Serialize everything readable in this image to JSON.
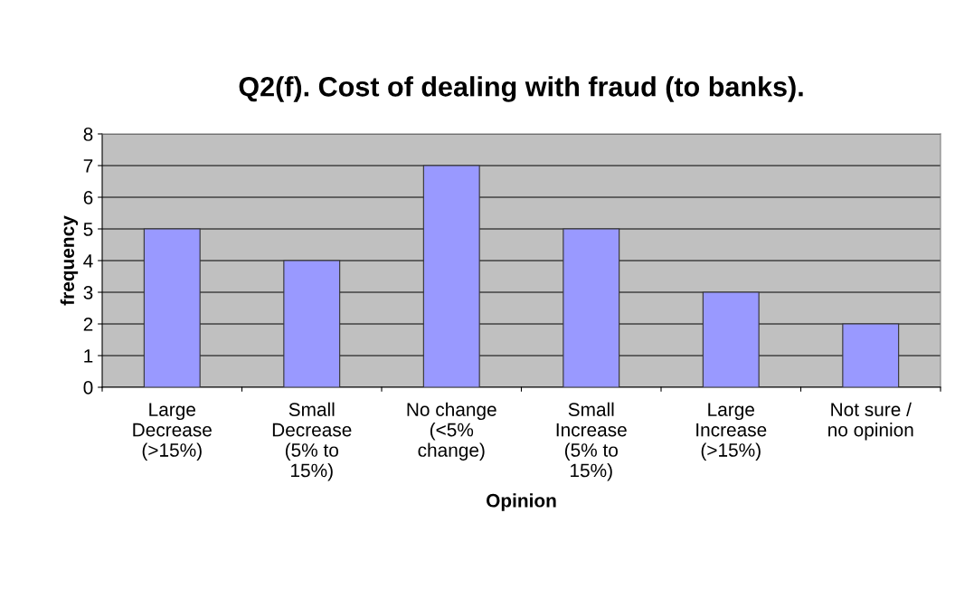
{
  "chart_data": {
    "type": "bar",
    "title": "Q2(f). Cost of dealing with fraud (to banks).",
    "xlabel": "Opinion",
    "ylabel": "frequency",
    "categories": [
      "Large\nDecrease\n(>15%)",
      "Small\nDecrease\n(5% to\n15%)",
      "No change\n(<5%\nchange)",
      "Small\nIncrease\n(5% to\n15%)",
      "Large\nIncrease\n(>15%)",
      "Not sure /\nno opinion"
    ],
    "values": [
      5,
      4,
      7,
      5,
      3,
      2
    ],
    "color": "#9999ff",
    "ylim": [
      0,
      8
    ],
    "yticks": [
      0,
      1,
      2,
      3,
      4,
      5,
      6,
      7,
      8
    ],
    "grid": "y",
    "legend": false
  }
}
